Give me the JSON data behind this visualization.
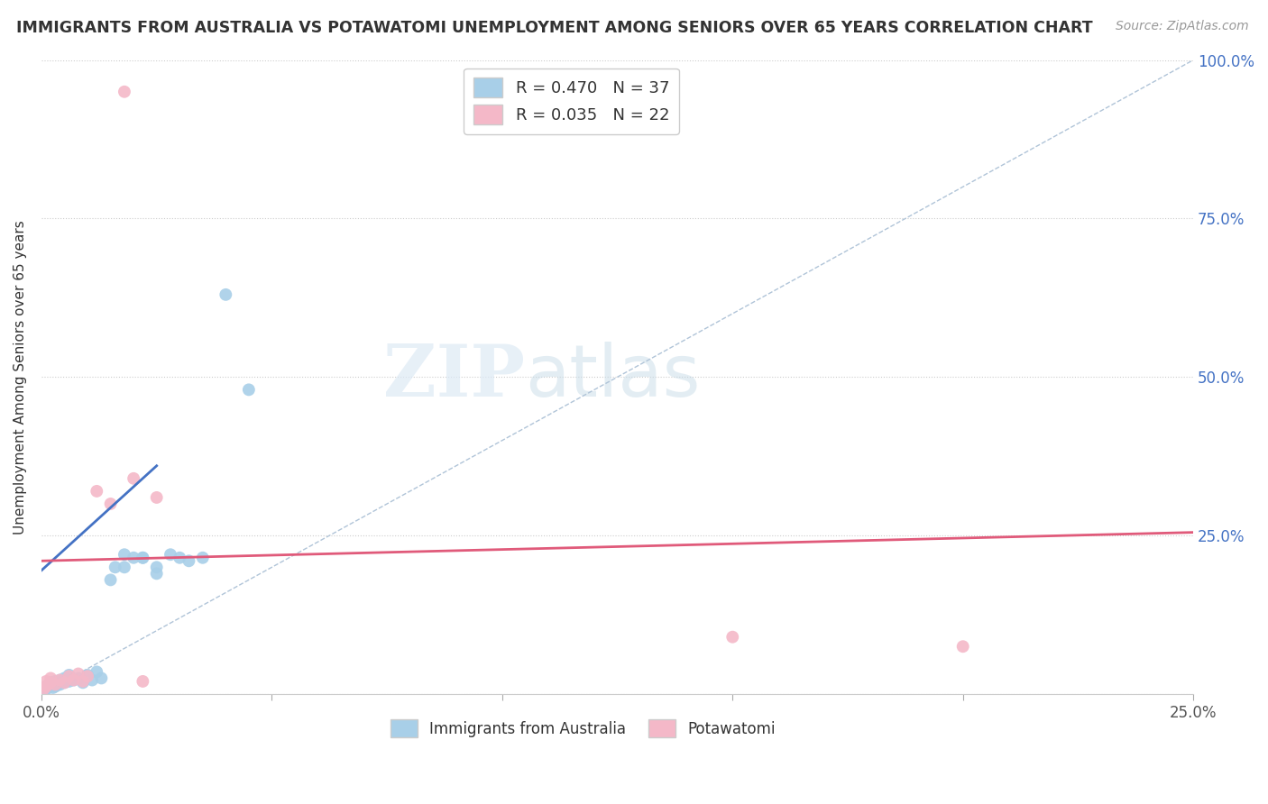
{
  "title": "IMMIGRANTS FROM AUSTRALIA VS POTAWATOMI UNEMPLOYMENT AMONG SENIORS OVER 65 YEARS CORRELATION CHART",
  "source": "Source: ZipAtlas.com",
  "ylabel": "Unemployment Among Seniors over 65 years",
  "xlim": [
    0.0,
    0.25
  ],
  "ylim": [
    0.0,
    1.0
  ],
  "legend1_label": "Immigrants from Australia",
  "legend2_label": "Potawatomi",
  "R1": 0.47,
  "N1": 37,
  "R2": 0.035,
  "N2": 22,
  "blue_color": "#a8cfe8",
  "pink_color": "#f4b8c8",
  "blue_line_color": "#4472c4",
  "pink_line_color": "#e05a7a",
  "watermark_zip": "ZIP",
  "watermark_atlas": "atlas",
  "blue_line_x": [
    0.0,
    0.025
  ],
  "blue_line_y": [
    0.195,
    0.36
  ],
  "pink_line_x": [
    0.0,
    0.25
  ],
  "pink_line_y": [
    0.21,
    0.255
  ],
  "diag_line_x": [
    0.0,
    0.25
  ],
  "diag_line_y": [
    0.0,
    1.0
  ],
  "blue_scatter_x": [
    0.0005,
    0.001,
    0.001,
    0.0015,
    0.002,
    0.002,
    0.0025,
    0.003,
    0.003,
    0.004,
    0.004,
    0.005,
    0.005,
    0.006,
    0.006,
    0.007,
    0.008,
    0.009,
    0.01,
    0.011,
    0.012,
    0.013,
    0.015,
    0.016,
    0.018,
    0.02,
    0.022,
    0.025,
    0.028,
    0.032,
    0.035,
    0.04,
    0.045,
    0.018,
    0.022,
    0.025,
    0.03
  ],
  "blue_scatter_y": [
    0.005,
    0.008,
    0.012,
    0.01,
    0.015,
    0.018,
    0.01,
    0.012,
    0.02,
    0.015,
    0.022,
    0.018,
    0.025,
    0.02,
    0.03,
    0.022,
    0.025,
    0.018,
    0.03,
    0.022,
    0.035,
    0.025,
    0.18,
    0.2,
    0.22,
    0.215,
    0.215,
    0.2,
    0.22,
    0.21,
    0.215,
    0.63,
    0.48,
    0.2,
    0.215,
    0.19,
    0.215
  ],
  "pink_scatter_x": [
    0.0005,
    0.001,
    0.001,
    0.0015,
    0.002,
    0.002,
    0.003,
    0.004,
    0.005,
    0.006,
    0.007,
    0.008,
    0.009,
    0.01,
    0.012,
    0.015,
    0.02,
    0.025,
    0.15,
    0.2,
    0.018,
    0.022
  ],
  "pink_scatter_y": [
    0.008,
    0.012,
    0.02,
    0.015,
    0.018,
    0.025,
    0.015,
    0.022,
    0.018,
    0.028,
    0.022,
    0.032,
    0.02,
    0.028,
    0.32,
    0.3,
    0.34,
    0.31,
    0.09,
    0.075,
    0.95,
    0.02
  ]
}
